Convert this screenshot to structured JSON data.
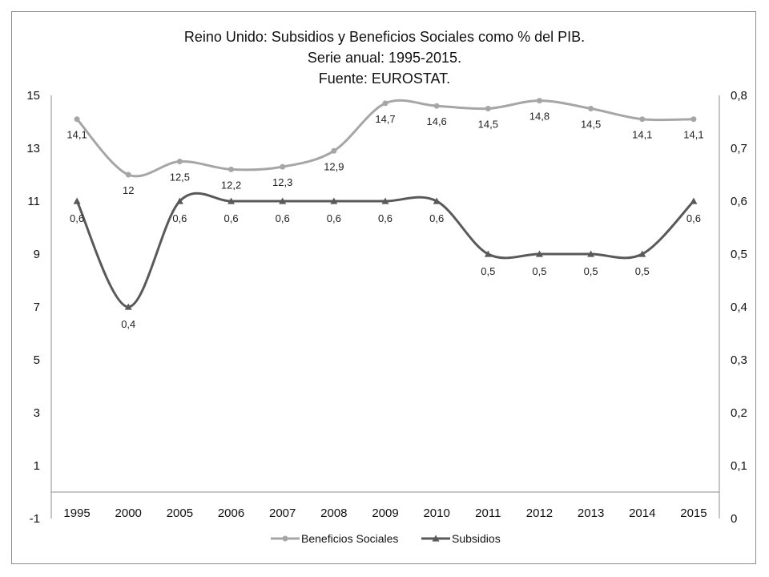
{
  "chart_data": {
    "type": "line",
    "title_lines": [
      "Reino Unido: Subsidios y Beneficios Sociales como % del PIB.",
      "Serie anual: 1995-2015.",
      "Fuente: EUROSTAT."
    ],
    "categories": [
      "1995",
      "2000",
      "2005",
      "2006",
      "2007",
      "2008",
      "2009",
      "2010",
      "2011",
      "2012",
      "2013",
      "2014",
      "2015"
    ],
    "y_left": {
      "min": -1,
      "max": 15,
      "ticks": [
        15,
        13,
        11,
        9,
        7,
        5,
        3,
        1,
        -1
      ],
      "tick_labels": [
        "15",
        "13",
        "11",
        "9",
        "7",
        "5",
        "3",
        "1",
        "-1"
      ]
    },
    "y_right": {
      "min": 0,
      "max": 0.8,
      "ticks": [
        0.8,
        0.7,
        0.6,
        0.5,
        0.4,
        0.3,
        0.2,
        0.1,
        0
      ],
      "tick_labels": [
        "0,8",
        "0,7",
        "0,6",
        "0,5",
        "0,4",
        "0,3",
        "0,2",
        "0,1",
        "0"
      ]
    },
    "grid": false,
    "legend_position": "bottom",
    "series": [
      {
        "name": "Beneficios Sociales",
        "axis": "left",
        "color": "#a6a6a6",
        "marker": "circle",
        "values": [
          14.1,
          12,
          12.5,
          12.2,
          12.3,
          12.9,
          14.7,
          14.6,
          14.5,
          14.8,
          14.5,
          14.1,
          14.1
        ],
        "labels": [
          "14,1",
          "12",
          "12,5",
          "12,2",
          "12,3",
          "12,9",
          "14,7",
          "14,6",
          "14,5",
          "14,8",
          "14,5",
          "14,1",
          "14,1"
        ]
      },
      {
        "name": "Subsidios",
        "axis": "right",
        "color": "#595959",
        "marker": "triangle",
        "values": [
          0.6,
          0.4,
          0.6,
          0.6,
          0.6,
          0.6,
          0.6,
          0.6,
          0.5,
          0.5,
          0.5,
          0.5,
          0.6
        ],
        "labels": [
          "0,6",
          "0,4",
          "0,6",
          "0,6",
          "0,6",
          "0,6",
          "0,6",
          "0,6",
          "0,5",
          "0,5",
          "0,5",
          "0,5",
          "0,6"
        ]
      }
    ]
  }
}
